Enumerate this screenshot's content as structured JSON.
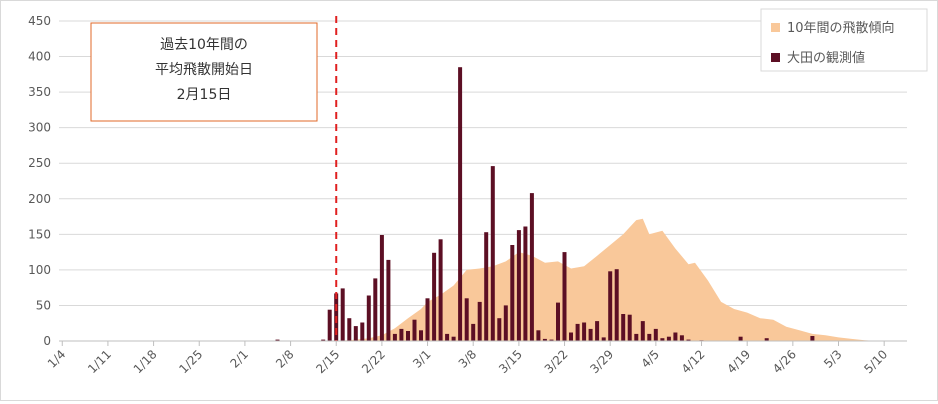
{
  "chart_data": {
    "type": "bar",
    "title": "",
    "xlabel": "",
    "ylabel": "",
    "ylim": [
      0,
      450
    ],
    "yticks": [
      0,
      50,
      100,
      150,
      200,
      250,
      300,
      350,
      400,
      450
    ],
    "grid": "horizontal",
    "legend_position": "top-right",
    "x_range": [
      "1/4",
      "5/10"
    ],
    "x_tick_labels": [
      "1/4",
      "1/11",
      "1/18",
      "1/25",
      "2/1",
      "2/8",
      "2/15",
      "2/22",
      "3/1",
      "3/8",
      "3/15",
      "3/22",
      "3/29",
      "4/5",
      "4/12",
      "4/19",
      "4/26",
      "5/3",
      "5/10"
    ],
    "colors": {
      "area": "#f9c89a",
      "bars": "#5c0f24",
      "reference_line": "#e02020",
      "annotation_border": "#e06a2a",
      "grid": "#d9d9d9"
    },
    "series": [
      {
        "name": "10年間の飛散傾向",
        "type": "area",
        "points": [
          [
            "2/15",
            0
          ],
          [
            "2/18",
            2
          ],
          [
            "2/20",
            4
          ],
          [
            "2/22",
            8
          ],
          [
            "2/24",
            18
          ],
          [
            "2/26",
            32
          ],
          [
            "2/28",
            45
          ],
          [
            "3/1",
            55
          ],
          [
            "3/3",
            65
          ],
          [
            "3/5",
            78
          ],
          [
            "3/7",
            100
          ],
          [
            "3/9",
            102
          ],
          [
            "3/11",
            105
          ],
          [
            "3/13",
            112
          ],
          [
            "3/15",
            125
          ],
          [
            "3/17",
            120
          ],
          [
            "3/19",
            110
          ],
          [
            "3/21",
            112
          ],
          [
            "3/23",
            102
          ],
          [
            "3/25",
            105
          ],
          [
            "3/27",
            120
          ],
          [
            "3/29",
            135
          ],
          [
            "3/31",
            150
          ],
          [
            "4/2",
            170
          ],
          [
            "4/3",
            172
          ],
          [
            "4/4",
            150
          ],
          [
            "4/6",
            155
          ],
          [
            "4/8",
            130
          ],
          [
            "4/10",
            108
          ],
          [
            "4/11",
            110
          ],
          [
            "4/13",
            85
          ],
          [
            "4/15",
            55
          ],
          [
            "4/17",
            45
          ],
          [
            "4/19",
            40
          ],
          [
            "4/21",
            32
          ],
          [
            "4/23",
            30
          ],
          [
            "4/25",
            20
          ],
          [
            "4/27",
            15
          ],
          [
            "4/29",
            10
          ],
          [
            "5/1",
            8
          ],
          [
            "5/3",
            5
          ],
          [
            "5/5",
            3
          ],
          [
            "5/7",
            1
          ],
          [
            "5/9",
            0
          ]
        ]
      },
      {
        "name": "大田の観測値",
        "type": "bar",
        "points": [
          [
            "2/6",
            2
          ],
          [
            "2/13",
            2
          ],
          [
            "2/14",
            44
          ],
          [
            "2/15",
            67
          ],
          [
            "2/16",
            74
          ],
          [
            "2/17",
            32
          ],
          [
            "2/18",
            21
          ],
          [
            "2/19",
            26
          ],
          [
            "2/20",
            64
          ],
          [
            "2/21",
            88
          ],
          [
            "2/22",
            149
          ],
          [
            "2/23",
            114
          ],
          [
            "2/24",
            10
          ],
          [
            "2/25",
            17
          ],
          [
            "2/26",
            14
          ],
          [
            "2/27",
            30
          ],
          [
            "2/28",
            15
          ],
          [
            "3/1",
            60
          ],
          [
            "3/2",
            124
          ],
          [
            "3/3",
            143
          ],
          [
            "3/4",
            10
          ],
          [
            "3/5",
            6
          ],
          [
            "3/6",
            385
          ],
          [
            "3/7",
            60
          ],
          [
            "3/8",
            24
          ],
          [
            "3/9",
            55
          ],
          [
            "3/10",
            153
          ],
          [
            "3/11",
            246
          ],
          [
            "3/12",
            32
          ],
          [
            "3/13",
            50
          ],
          [
            "3/14",
            135
          ],
          [
            "3/15",
            156
          ],
          [
            "3/16",
            161
          ],
          [
            "3/17",
            208
          ],
          [
            "3/18",
            15
          ],
          [
            "3/19",
            3
          ],
          [
            "3/20",
            2
          ],
          [
            "3/21",
            54
          ],
          [
            "3/22",
            125
          ],
          [
            "3/23",
            12
          ],
          [
            "3/24",
            24
          ],
          [
            "3/25",
            26
          ],
          [
            "3/26",
            17
          ],
          [
            "3/27",
            28
          ],
          [
            "3/28",
            5
          ],
          [
            "3/29",
            98
          ],
          [
            "3/30",
            101
          ],
          [
            "3/31",
            38
          ],
          [
            "4/1",
            37
          ],
          [
            "4/2",
            10
          ],
          [
            "4/3",
            28
          ],
          [
            "4/4",
            10
          ],
          [
            "4/5",
            17
          ],
          [
            "4/6",
            4
          ],
          [
            "4/7",
            6
          ],
          [
            "4/8",
            12
          ],
          [
            "4/9",
            8
          ],
          [
            "4/10",
            2
          ],
          [
            "4/12",
            1
          ],
          [
            "4/18",
            6
          ],
          [
            "4/22",
            4
          ],
          [
            "4/29",
            7
          ]
        ]
      }
    ],
    "reference_line": {
      "x": "2/15"
    },
    "annotation": {
      "lines": [
        "過去10年間の",
        "平均飛散開始日",
        "2月15日"
      ]
    }
  }
}
